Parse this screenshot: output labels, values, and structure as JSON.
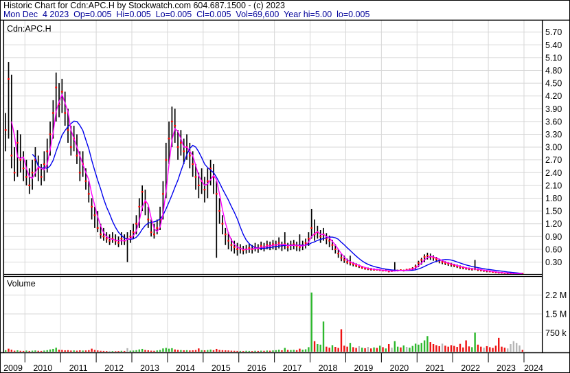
{
  "header": {
    "line1": "Historic Chart for Cdn:APC.H by Stockwatch.com 604.687.1500 - (c) 2023",
    "line2": "Mon Dec  4 2023  Op=0.005  Hi=0.005  Lo=0.005  Cl=0.005  Vol=69,600  Year hi=5.00  lo=0.005"
  },
  "price_pane": {
    "label": "Cdn:APC.H"
  },
  "volume_pane": {
    "label": "Volume"
  },
  "axes": {
    "price_ticks": [
      "5.70",
      "5.40",
      "5.10",
      "4.80",
      "4.50",
      "4.20",
      "3.90",
      "3.60",
      "3.30",
      "3.00",
      "2.70",
      "2.40",
      "2.10",
      "1.80",
      "1.50",
      "1.20",
      "0.90",
      "0.60",
      "0.30"
    ],
    "volume_ticks": [
      {
        "label": "2.2 M",
        "value_k": 2250
      },
      {
        "label": "1.5 M",
        "value_k": 1500
      },
      {
        "label": "750 k",
        "value_k": 750
      }
    ],
    "years": [
      "2009",
      "2010",
      "2011",
      "2012",
      "2013",
      "2014",
      "2015",
      "2016",
      "2017",
      "2018",
      "2019",
      "2020",
      "2021",
      "2022",
      "2023",
      "2024"
    ]
  },
  "colors": {
    "header_line2": "#000099",
    "grid": "#d7d7d7",
    "bar": "#000000",
    "close_tick": "#ff0000",
    "ma_short": "#ff00ff",
    "ma_long": "#0000ee",
    "vol_up": "#2db82d",
    "vol_down": "#ee1111",
    "vol_neutral": "#b5b5b5",
    "frame": "#000000"
  },
  "chart_data": {
    "type": "candlestick+volume",
    "title": "Historic Chart for Cdn:APC.H by Stockwatch.com",
    "symbol": "Cdn:APC.H",
    "x_range": [
      "2009-06",
      "2023-12"
    ],
    "granularity": "monthly-approx",
    "price_axis": {
      "min": 0,
      "max": 5.85,
      "tick_step": 0.3
    },
    "volume_axis_k": {
      "max": 3000,
      "tick_step_k": 750
    },
    "ma_windows": {
      "short": 3,
      "long": 10
    },
    "legend": [
      "high-low bar (black)",
      "close (red tick)",
      "short MA (magenta)",
      "long MA (blue)"
    ],
    "ohlc_hi_lo_close": [
      [
        3.8,
        2.9,
        3.4
      ],
      [
        5.0,
        3.2,
        4.6
      ],
      [
        4.7,
        2.5,
        2.8
      ],
      [
        3.0,
        2.2,
        2.4
      ],
      [
        3.4,
        2.3,
        3.1
      ],
      [
        3.3,
        2.4,
        2.7
      ],
      [
        2.9,
        2.2,
        2.5
      ],
      [
        2.7,
        2.1,
        2.3
      ],
      [
        2.5,
        1.9,
        2.1
      ],
      [
        2.7,
        2.0,
        2.4
      ],
      [
        3.0,
        2.3,
        2.7
      ],
      [
        2.8,
        2.2,
        2.5
      ],
      [
        2.6,
        2.1,
        2.3
      ],
      [
        2.9,
        2.2,
        2.6
      ],
      [
        3.2,
        2.4,
        2.9
      ],
      [
        3.6,
        2.8,
        3.3
      ],
      [
        4.1,
        3.2,
        3.8
      ],
      [
        4.75,
        3.6,
        4.4
      ],
      [
        4.5,
        3.7,
        4.0
      ],
      [
        4.6,
        3.8,
        4.3
      ],
      [
        4.3,
        3.5,
        3.8
      ],
      [
        3.9,
        3.1,
        3.4
      ],
      [
        3.5,
        2.8,
        3.0
      ],
      [
        3.5,
        2.9,
        3.2
      ],
      [
        3.3,
        2.6,
        2.8
      ],
      [
        2.9,
        2.2,
        2.4
      ],
      [
        2.9,
        2.3,
        2.6
      ],
      [
        2.5,
        2.0,
        2.2
      ],
      [
        2.2,
        1.7,
        1.9
      ],
      [
        1.8,
        1.3,
        1.6
      ],
      [
        1.6,
        1.1,
        1.4
      ],
      [
        1.5,
        1.0,
        1.1
      ],
      [
        1.2,
        0.85,
        0.95
      ],
      [
        1.1,
        0.8,
        0.9
      ],
      [
        1.0,
        0.75,
        0.85
      ],
      [
        0.95,
        0.7,
        0.8
      ],
      [
        1.0,
        0.75,
        0.85
      ],
      [
        0.95,
        0.7,
        0.8
      ],
      [
        0.9,
        0.65,
        0.75
      ],
      [
        1.0,
        0.7,
        0.85
      ],
      [
        0.95,
        0.7,
        0.8
      ],
      [
        1.0,
        0.3,
        0.85
      ],
      [
        1.05,
        0.75,
        0.9
      ],
      [
        1.2,
        0.85,
        1.0
      ],
      [
        1.4,
        0.95,
        1.2
      ],
      [
        1.8,
        1.1,
        1.6
      ],
      [
        2.1,
        1.5,
        1.95
      ],
      [
        2.0,
        1.4,
        1.7
      ],
      [
        1.6,
        1.1,
        1.3
      ],
      [
        1.3,
        0.9,
        1.0
      ],
      [
        1.2,
        0.85,
        0.95
      ],
      [
        1.3,
        0.95,
        1.1
      ],
      [
        1.6,
        1.05,
        1.3
      ],
      [
        2.2,
        1.3,
        1.9
      ],
      [
        3.1,
        1.8,
        2.7
      ],
      [
        3.6,
        2.6,
        3.2
      ],
      [
        3.95,
        3.0,
        3.6
      ],
      [
        3.9,
        3.1,
        3.5
      ],
      [
        3.4,
        2.7,
        3.0
      ],
      [
        3.4,
        2.8,
        3.1
      ],
      [
        3.2,
        2.6,
        2.9
      ],
      [
        3.3,
        2.7,
        3.0
      ],
      [
        3.1,
        2.5,
        2.8
      ],
      [
        2.9,
        2.3,
        2.6
      ],
      [
        2.6,
        2.0,
        2.3
      ],
      [
        2.4,
        1.8,
        2.1
      ],
      [
        2.5,
        1.9,
        2.2
      ],
      [
        2.3,
        1.7,
        2.0
      ],
      [
        2.5,
        1.8,
        2.2
      ],
      [
        2.7,
        2.1,
        2.5
      ],
      [
        2.6,
        1.9,
        2.3
      ],
      [
        2.2,
        0.4,
        1.9
      ],
      [
        1.8,
        1.2,
        1.5
      ],
      [
        1.4,
        0.95,
        1.2
      ],
      [
        1.1,
        0.7,
        0.95
      ],
      [
        1.0,
        0.6,
        0.8
      ],
      [
        0.85,
        0.55,
        0.7
      ],
      [
        0.8,
        0.5,
        0.65
      ],
      [
        0.75,
        0.45,
        0.6
      ],
      [
        0.72,
        0.5,
        0.62
      ],
      [
        0.68,
        0.48,
        0.58
      ],
      [
        0.7,
        0.5,
        0.6
      ],
      [
        0.73,
        0.52,
        0.63
      ],
      [
        0.7,
        0.5,
        0.6
      ],
      [
        0.75,
        0.55,
        0.65
      ],
      [
        0.72,
        0.52,
        0.62
      ],
      [
        0.78,
        0.58,
        0.68
      ],
      [
        0.75,
        0.55,
        0.65
      ],
      [
        0.8,
        0.6,
        0.7
      ],
      [
        0.78,
        0.58,
        0.68
      ],
      [
        0.82,
        0.6,
        0.72
      ],
      [
        0.8,
        0.58,
        0.7
      ],
      [
        0.88,
        0.62,
        0.75
      ],
      [
        0.78,
        0.56,
        0.68
      ],
      [
        1.0,
        0.6,
        0.72
      ],
      [
        0.75,
        0.55,
        0.65
      ],
      [
        0.8,
        0.58,
        0.7
      ],
      [
        0.82,
        0.6,
        0.72
      ],
      [
        0.78,
        0.56,
        0.68
      ],
      [
        0.95,
        0.55,
        0.65
      ],
      [
        0.8,
        0.58,
        0.7
      ],
      [
        0.85,
        0.62,
        0.75
      ],
      [
        1.0,
        0.68,
        0.85
      ],
      [
        1.55,
        0.85,
        1.1
      ],
      [
        1.3,
        0.8,
        0.95
      ],
      [
        1.15,
        0.85,
        1.0
      ],
      [
        1.05,
        0.75,
        0.9
      ],
      [
        1.1,
        0.8,
        0.95
      ],
      [
        0.98,
        0.72,
        0.85
      ],
      [
        0.92,
        0.65,
        0.8
      ],
      [
        0.82,
        0.58,
        0.7
      ],
      [
        0.72,
        0.5,
        0.6
      ],
      [
        0.6,
        0.4,
        0.5
      ],
      [
        0.5,
        0.32,
        0.4
      ],
      [
        0.45,
        0.28,
        0.35
      ],
      [
        0.38,
        0.25,
        0.3
      ],
      [
        0.45,
        0.22,
        0.28
      ],
      [
        0.3,
        0.2,
        0.25
      ],
      [
        0.27,
        0.18,
        0.22
      ],
      [
        0.24,
        0.16,
        0.2
      ],
      [
        0.21,
        0.14,
        0.17
      ],
      [
        0.18,
        0.12,
        0.15
      ],
      [
        0.17,
        0.11,
        0.14
      ],
      [
        0.16,
        0.1,
        0.13
      ],
      [
        0.15,
        0.1,
        0.12
      ],
      [
        0.14,
        0.1,
        0.12
      ],
      [
        0.13,
        0.09,
        0.11
      ],
      [
        0.12,
        0.08,
        0.1
      ],
      [
        0.12,
        0.08,
        0.1
      ],
      [
        0.1,
        0.06,
        0.08
      ],
      [
        0.11,
        0.07,
        0.09
      ],
      [
        0.3,
        0.08,
        0.1
      ],
      [
        0.12,
        0.08,
        0.1
      ],
      [
        0.13,
        0.09,
        0.11
      ],
      [
        0.12,
        0.08,
        0.1
      ],
      [
        0.14,
        0.09,
        0.12
      ],
      [
        0.15,
        0.1,
        0.13
      ],
      [
        0.18,
        0.11,
        0.15
      ],
      [
        0.24,
        0.13,
        0.2
      ],
      [
        0.33,
        0.18,
        0.28
      ],
      [
        0.4,
        0.24,
        0.35
      ],
      [
        0.48,
        0.3,
        0.42
      ],
      [
        0.52,
        0.36,
        0.45
      ],
      [
        0.5,
        0.35,
        0.42
      ],
      [
        0.46,
        0.33,
        0.4
      ],
      [
        0.42,
        0.3,
        0.37
      ],
      [
        0.38,
        0.27,
        0.33
      ],
      [
        0.35,
        0.25,
        0.3
      ],
      [
        0.32,
        0.23,
        0.28
      ],
      [
        0.3,
        0.21,
        0.26
      ],
      [
        0.28,
        0.19,
        0.24
      ],
      [
        0.26,
        0.18,
        0.22
      ],
      [
        0.24,
        0.16,
        0.2
      ],
      [
        0.22,
        0.14,
        0.18
      ],
      [
        0.2,
        0.13,
        0.17
      ],
      [
        0.18,
        0.12,
        0.15
      ],
      [
        0.17,
        0.11,
        0.14
      ],
      [
        0.16,
        0.1,
        0.13
      ],
      [
        0.35,
        0.11,
        0.14
      ],
      [
        0.15,
        0.09,
        0.12
      ],
      [
        0.13,
        0.08,
        0.11
      ],
      [
        0.12,
        0.07,
        0.1
      ],
      [
        0.11,
        0.06,
        0.09
      ],
      [
        0.1,
        0.06,
        0.08
      ],
      [
        0.09,
        0.05,
        0.07
      ],
      [
        0.08,
        0.04,
        0.06
      ],
      [
        0.07,
        0.035,
        0.05
      ],
      [
        0.06,
        0.03,
        0.05
      ],
      [
        0.055,
        0.025,
        0.04
      ],
      [
        0.05,
        0.02,
        0.035
      ],
      [
        0.045,
        0.02,
        0.03
      ],
      [
        0.04,
        0.015,
        0.025
      ],
      [
        0.035,
        0.01,
        0.02
      ],
      [
        0.025,
        0.008,
        0.01
      ],
      [
        0.02,
        0.005,
        0.005
      ]
    ],
    "volume_k": [
      [
        60,
        "g"
      ],
      [
        120,
        "r"
      ],
      [
        80,
        "r"
      ],
      [
        40,
        "r"
      ],
      [
        55,
        "g"
      ],
      [
        35,
        "r"
      ],
      [
        30,
        "r"
      ],
      [
        45,
        "g"
      ],
      [
        30,
        "r"
      ],
      [
        40,
        "g"
      ],
      [
        50,
        "g"
      ],
      [
        35,
        "r"
      ],
      [
        30,
        "r"
      ],
      [
        45,
        "g"
      ],
      [
        60,
        "g"
      ],
      [
        90,
        "g"
      ],
      [
        110,
        "g"
      ],
      [
        160,
        "g"
      ],
      [
        80,
        "r"
      ],
      [
        70,
        "r"
      ],
      [
        55,
        "r"
      ],
      [
        60,
        "r"
      ],
      [
        45,
        "r"
      ],
      [
        50,
        "g"
      ],
      [
        40,
        "r"
      ],
      [
        55,
        "r"
      ],
      [
        45,
        "g"
      ],
      [
        50,
        "r"
      ],
      [
        60,
        "r"
      ],
      [
        120,
        "r"
      ],
      [
        70,
        "r"
      ],
      [
        50,
        "r"
      ],
      [
        35,
        "r"
      ],
      [
        30,
        "r"
      ],
      [
        25,
        "r"
      ],
      [
        30,
        "n"
      ],
      [
        25,
        "g"
      ],
      [
        20,
        "r"
      ],
      [
        25,
        "r"
      ],
      [
        35,
        "g"
      ],
      [
        30,
        "r"
      ],
      [
        140,
        "n"
      ],
      [
        40,
        "g"
      ],
      [
        45,
        "g"
      ],
      [
        60,
        "g"
      ],
      [
        90,
        "g"
      ],
      [
        110,
        "g"
      ],
      [
        70,
        "r"
      ],
      [
        55,
        "r"
      ],
      [
        40,
        "r"
      ],
      [
        35,
        "r"
      ],
      [
        50,
        "g"
      ],
      [
        70,
        "g"
      ],
      [
        130,
        "g"
      ],
      [
        150,
        "g"
      ],
      [
        120,
        "g"
      ],
      [
        140,
        "g"
      ],
      [
        90,
        "r"
      ],
      [
        70,
        "r"
      ],
      [
        65,
        "g"
      ],
      [
        55,
        "r"
      ],
      [
        60,
        "g"
      ],
      [
        50,
        "r"
      ],
      [
        55,
        "r"
      ],
      [
        65,
        "r"
      ],
      [
        130,
        "r"
      ],
      [
        60,
        "g"
      ],
      [
        55,
        "r"
      ],
      [
        65,
        "g"
      ],
      [
        85,
        "g"
      ],
      [
        60,
        "r"
      ],
      [
        110,
        "r"
      ],
      [
        70,
        "r"
      ],
      [
        60,
        "r"
      ],
      [
        55,
        "r"
      ],
      [
        50,
        "r"
      ],
      [
        40,
        "r"
      ],
      [
        35,
        "r"
      ],
      [
        30,
        "r"
      ],
      [
        30,
        "g"
      ],
      [
        25,
        "r"
      ],
      [
        35,
        "g"
      ],
      [
        30,
        "g"
      ],
      [
        25,
        "r"
      ],
      [
        35,
        "g"
      ],
      [
        30,
        "r"
      ],
      [
        40,
        "g"
      ],
      [
        35,
        "r"
      ],
      [
        45,
        "g"
      ],
      [
        40,
        "r"
      ],
      [
        50,
        "g"
      ],
      [
        60,
        "g"
      ],
      [
        80,
        "g"
      ],
      [
        55,
        "r"
      ],
      [
        150,
        "g"
      ],
      [
        70,
        "r"
      ],
      [
        65,
        "g"
      ],
      [
        75,
        "g"
      ],
      [
        60,
        "r"
      ],
      [
        120,
        "r"
      ],
      [
        80,
        "g"
      ],
      [
        95,
        "g"
      ],
      [
        180,
        "g"
      ],
      [
        2350,
        "g"
      ],
      [
        420,
        "r"
      ],
      [
        300,
        "g"
      ],
      [
        280,
        "g"
      ],
      [
        1200,
        "g"
      ],
      [
        200,
        "r"
      ],
      [
        160,
        "r"
      ],
      [
        260,
        "g"
      ],
      [
        190,
        "r"
      ],
      [
        150,
        "r"
      ],
      [
        890,
        "r"
      ],
      [
        240,
        "r"
      ],
      [
        200,
        "r"
      ],
      [
        350,
        "g"
      ],
      [
        180,
        "r"
      ],
      [
        150,
        "r"
      ],
      [
        220,
        "n"
      ],
      [
        160,
        "g"
      ],
      [
        140,
        "r"
      ],
      [
        190,
        "n"
      ],
      [
        130,
        "r"
      ],
      [
        170,
        "g"
      ],
      [
        150,
        "r"
      ],
      [
        240,
        "g"
      ],
      [
        180,
        "r"
      ],
      [
        130,
        "g"
      ],
      [
        300,
        "r"
      ],
      [
        160,
        "n"
      ],
      [
        420,
        "g"
      ],
      [
        200,
        "g"
      ],
      [
        170,
        "r"
      ],
      [
        250,
        "g"
      ],
      [
        190,
        "n"
      ],
      [
        160,
        "g"
      ],
      [
        230,
        "g"
      ],
      [
        320,
        "g"
      ],
      [
        280,
        "g"
      ],
      [
        350,
        "g"
      ],
      [
        450,
        "g"
      ],
      [
        620,
        "g"
      ],
      [
        380,
        "r"
      ],
      [
        300,
        "r"
      ],
      [
        260,
        "r"
      ],
      [
        220,
        "r"
      ],
      [
        320,
        "n"
      ],
      [
        240,
        "r"
      ],
      [
        200,
        "r"
      ],
      [
        260,
        "r"
      ],
      [
        230,
        "r"
      ],
      [
        190,
        "r"
      ],
      [
        310,
        "r"
      ],
      [
        170,
        "r"
      ],
      [
        450,
        "r"
      ],
      [
        210,
        "r"
      ],
      [
        180,
        "g"
      ],
      [
        760,
        "g"
      ],
      [
        280,
        "r"
      ],
      [
        200,
        "r"
      ],
      [
        160,
        "n"
      ],
      [
        220,
        "r"
      ],
      [
        180,
        "r"
      ],
      [
        150,
        "r"
      ],
      [
        240,
        "r"
      ],
      [
        550,
        "r"
      ],
      [
        200,
        "r"
      ],
      [
        160,
        "r"
      ],
      [
        130,
        "n"
      ],
      [
        300,
        "n"
      ],
      [
        420,
        "n"
      ],
      [
        350,
        "n"
      ],
      [
        250,
        "n"
      ],
      [
        70,
        "r"
      ]
    ]
  }
}
